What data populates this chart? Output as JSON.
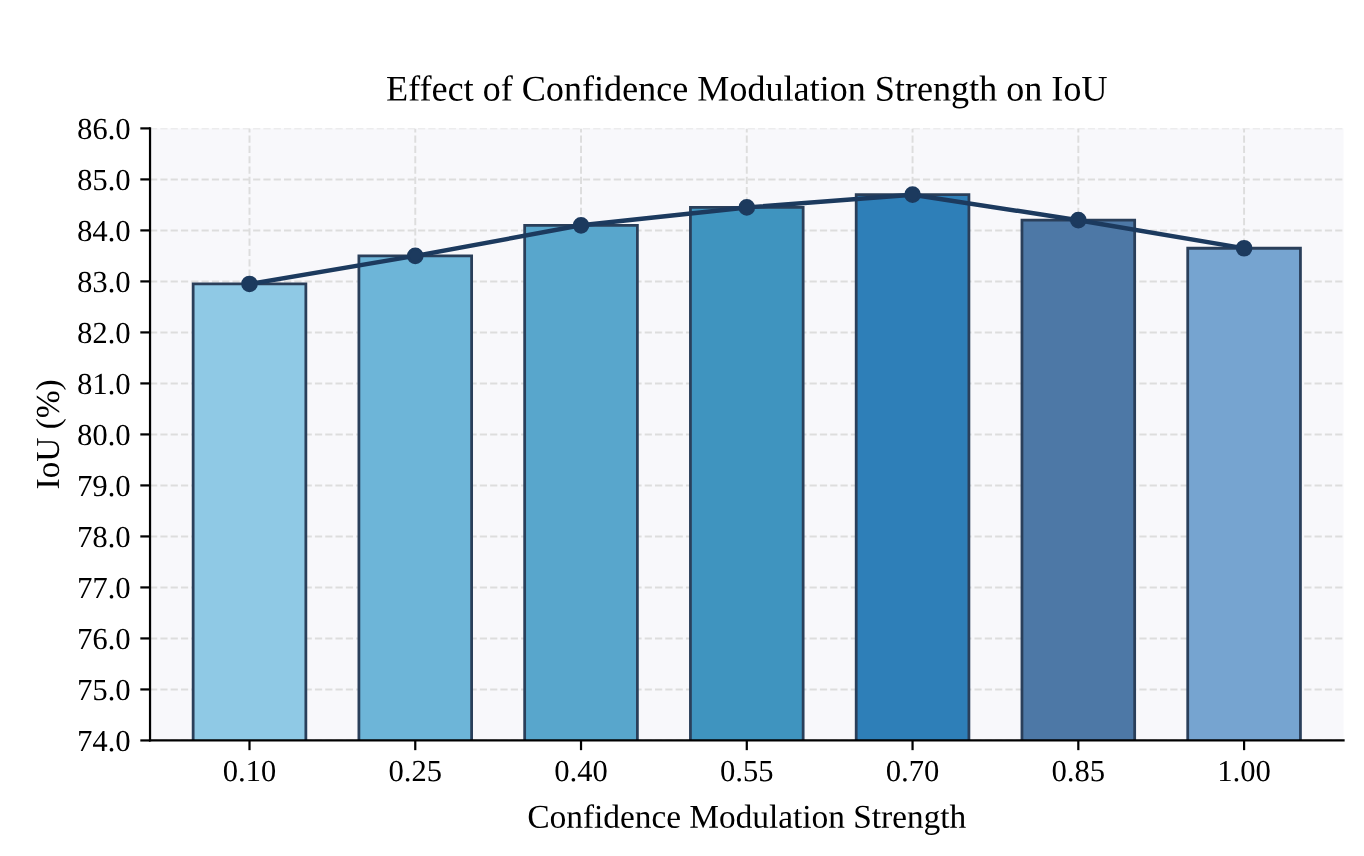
{
  "chart_data": {
    "type": "bar",
    "title": "Effect of Confidence Modulation Strength on IoU",
    "xlabel": "Confidence Modulation Strength",
    "ylabel": "IoU (%)",
    "categories": [
      "0.10",
      "0.25",
      "0.40",
      "0.55",
      "0.70",
      "0.85",
      "1.00"
    ],
    "series": [
      {
        "colors": [
          "#8fc9e5",
          "#6db5d8",
          "#58a6cc",
          "#3f94bf",
          "#2e7fb8",
          "#4d78a6",
          "#76a4d0"
        ],
        "values": [
          82.95,
          83.5,
          84.1,
          84.45,
          84.7,
          84.2,
          83.65
        ]
      },
      {
        "type": "line",
        "color": "#1c3a5e",
        "marker": "circle",
        "values": [
          82.95,
          83.5,
          84.1,
          84.45,
          84.7,
          84.2,
          83.65
        ]
      }
    ],
    "ylim": [
      74.0,
      86.0
    ],
    "yticks": [
      {
        "value": 74,
        "label": "74.0"
      },
      {
        "value": 75,
        "label": "75.0"
      },
      {
        "value": 76,
        "label": "76.0"
      },
      {
        "value": 77,
        "label": "77.0"
      },
      {
        "value": 78,
        "label": "78.0"
      },
      {
        "value": 79,
        "label": "79.0"
      },
      {
        "value": 80,
        "label": "80.0"
      },
      {
        "value": 81,
        "label": "81.0"
      },
      {
        "value": 82,
        "label": "82.0"
      },
      {
        "value": 83,
        "label": "83.0"
      },
      {
        "value": 84,
        "label": "84.0"
      },
      {
        "value": 85,
        "label": "85.0"
      },
      {
        "value": 86,
        "label": "86.0"
      }
    ],
    "grid": true
  }
}
